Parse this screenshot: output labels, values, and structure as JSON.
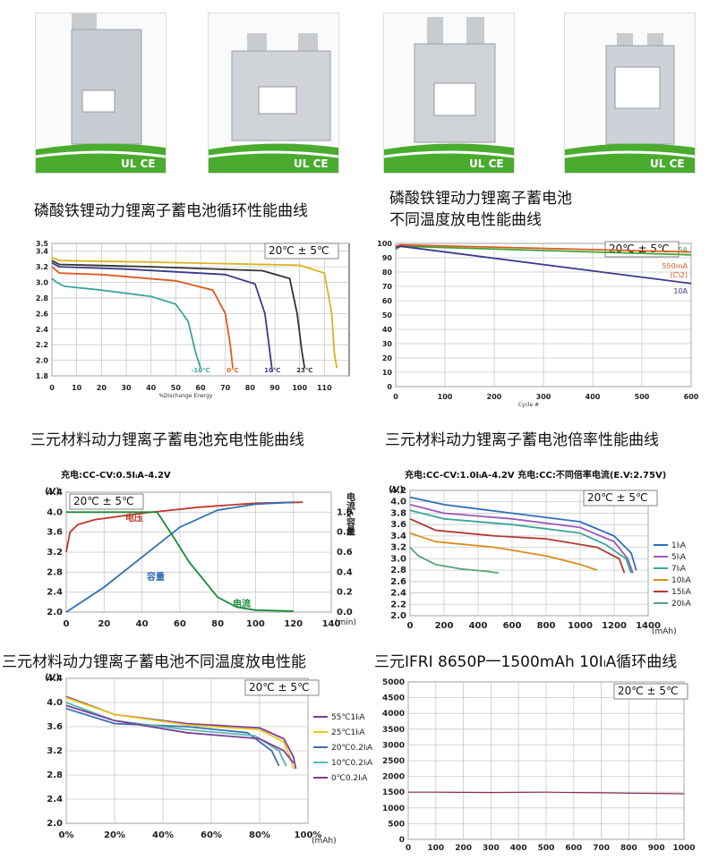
{
  "photos": [
    {
      "logo": "UL CE"
    },
    {
      "logo": "UL CE"
    },
    {
      "logo": "UL CE"
    },
    {
      "logo": "UL CE"
    }
  ],
  "captions": {
    "c1": "磷酸铁锂动力锂离子蓄电池循环性能曲线",
    "c2": "磷酸铁锂动力锂离子蓄电池\n不同温度放电性能曲线",
    "c3": "三元材料动力锂离子蓄电池充电性能曲线",
    "c4": "三元材料动力锂离子蓄电池倍率性能曲线",
    "c5": "三元材料动力锂离子蓄电池不同温度放电性能",
    "c6": "三元IFRI 8650P一1500mAh 10IₗA循环曲线"
  },
  "colors": {
    "green": "#3aa536",
    "red": "#c0392b",
    "blue": "#2f6fb5",
    "navy": "#3a3a8c",
    "orange": "#e08a1e",
    "yellow": "#d9b31c",
    "purple": "#7a3f9a",
    "teal": "#3aa69a"
  },
  "chart_data": [
    {
      "type": "line",
      "xlabel": "%Dischange Energy",
      "ylabel": "",
      "xlim": [
        0,
        120
      ],
      "ylim": [
        1.8,
        3.5
      ],
      "xticks": [
        "0",
        "10",
        "20",
        "30",
        "40",
        "50",
        "60",
        "70",
        "80",
        "90",
        "100",
        "110"
      ],
      "yticks": [
        "1.8",
        "2.0",
        "2.2",
        "2.4",
        "2.6",
        "2.8",
        "3.0",
        "3.2",
        "3.4",
        "3.5"
      ],
      "annotation": "20℃ ± 5℃",
      "series": [
        {
          "name": "-10℃",
          "color": "#3aa69a",
          "x": [
            0,
            2,
            5,
            20,
            40,
            50,
            55,
            58,
            60
          ],
          "y": [
            3.05,
            3.0,
            2.95,
            2.9,
            2.82,
            2.72,
            2.5,
            2.1,
            1.9
          ]
        },
        {
          "name": "0℃",
          "color": "#e05a1e",
          "x": [
            0,
            3,
            20,
            50,
            65,
            70,
            72,
            73
          ],
          "y": [
            3.2,
            3.12,
            3.1,
            3.02,
            2.9,
            2.6,
            2.2,
            1.9
          ]
        },
        {
          "name": "10℃",
          "color": "#3a3a8c",
          "x": [
            0,
            3,
            30,
            70,
            82,
            86,
            88,
            89
          ],
          "y": [
            3.25,
            3.2,
            3.17,
            3.1,
            2.98,
            2.6,
            2.1,
            1.85
          ]
        },
        {
          "name": "23℃",
          "color": "#333333",
          "x": [
            0,
            3,
            40,
            85,
            96,
            99,
            101,
            102
          ],
          "y": [
            3.28,
            3.23,
            3.2,
            3.15,
            3.05,
            2.6,
            2.1,
            1.9
          ]
        },
        {
          "name": "",
          "color": "#d9b31c",
          "x": [
            0,
            3,
            40,
            100,
            110,
            113,
            114,
            115
          ],
          "y": [
            3.32,
            3.28,
            3.26,
            3.22,
            3.12,
            2.6,
            2.1,
            1.9
          ]
        }
      ]
    },
    {
      "type": "line",
      "xlabel": "Cycle #",
      "ylabel": "",
      "xlim": [
        0,
        600
      ],
      "ylim": [
        0,
        100
      ],
      "xticks": [
        "0",
        "100",
        "200",
        "300",
        "400",
        "500",
        "600"
      ],
      "yticks": [
        "0",
        "10",
        "20",
        "30",
        "40",
        "50",
        "60",
        "70",
        "80",
        "90",
        "100"
      ],
      "annotation": "20℃ ± 5℃",
      "series": [
        {
          "name": "5A",
          "color": "#3aa536",
          "x": [
            0,
            10,
            600
          ],
          "y": [
            96,
            98,
            92
          ]
        },
        {
          "name": "550mA\n(C\\2)",
          "color": "#e05a1e",
          "x": [
            0,
            10,
            600
          ],
          "y": [
            98,
            99,
            94
          ]
        },
        {
          "name": "10A",
          "color": "#3a3a8c",
          "x": [
            0,
            10,
            600
          ],
          "y": [
            97,
            98,
            72
          ]
        }
      ]
    },
    {
      "type": "line",
      "title": "充电:CC-CV:0.5IₗA-4.2V",
      "ylabel": "(V)",
      "y2label": "电流&容量",
      "xlabel": "(min)",
      "xlim": [
        0,
        140
      ],
      "ylim": [
        2.0,
        4.4
      ],
      "y2lim": [
        0,
        1.2
      ],
      "xticks": [
        "0",
        "20",
        "40",
        "60",
        "80",
        "100",
        "120",
        "140"
      ],
      "yticks": [
        "2.0",
        "2.4",
        "2.8",
        "3.2",
        "3.6",
        "4.0",
        "4.4"
      ],
      "y2ticks": [
        "0.0",
        "0.2",
        "0.4",
        "0.6",
        "0.8",
        "1.0"
      ],
      "annotation": "20℃ ± 5℃",
      "series": [
        {
          "name": "电压",
          "color": "#c0392b",
          "x": [
            0,
            2,
            6,
            15,
            40,
            70,
            100,
            125
          ],
          "y": [
            3.2,
            3.6,
            3.75,
            3.85,
            3.98,
            4.1,
            4.18,
            4.2
          ]
        },
        {
          "name": "容量",
          "color": "#2f6fb5",
          "axis": "y2",
          "x": [
            0,
            20,
            40,
            60,
            80,
            100,
            120
          ],
          "y": [
            0,
            0.25,
            0.55,
            0.85,
            1.02,
            1.08,
            1.1
          ]
        },
        {
          "name": "电流",
          "color": "#1a8a3a",
          "axis": "y2",
          "x": [
            0,
            48,
            55,
            65,
            80,
            90,
            100,
            120
          ],
          "y": [
            1.0,
            1.0,
            0.8,
            0.5,
            0.15,
            0.05,
            0.02,
            0.01
          ]
        }
      ]
    },
    {
      "type": "line",
      "title": "充电:CC-CV:1.0IₗA-4.2V  充电:CC:不同倍率电流(E.V:2.75V)",
      "ylabel": "(V)",
      "xlabel": "(mAh)",
      "xlim": [
        0,
        1400
      ],
      "ylim": [
        2.0,
        4.2
      ],
      "xticks": [
        "0",
        "200",
        "400",
        "600",
        "800",
        "1000",
        "1200",
        "1400"
      ],
      "yticks": [
        "2.0",
        "2.2",
        "2.4",
        "2.6",
        "2.8",
        "3.0",
        "3.2",
        "3.4",
        "3.6",
        "3.8",
        "4.0",
        "4.2"
      ],
      "annotation": "20℃ ± 5℃",
      "series": [
        {
          "name": "1IₗA",
          "color": "#2f6fb5",
          "x": [
            0,
            200,
            600,
            1000,
            1200,
            1300,
            1330
          ],
          "y": [
            4.08,
            3.95,
            3.8,
            3.65,
            3.4,
            3.1,
            2.8
          ]
        },
        {
          "name": "5IₗA",
          "color": "#9b59b6",
          "x": [
            0,
            200,
            600,
            1000,
            1200,
            1280,
            1310
          ],
          "y": [
            3.95,
            3.8,
            3.7,
            3.55,
            3.3,
            3.0,
            2.75
          ]
        },
        {
          "name": "7IₗA",
          "color": "#3aa69a",
          "x": [
            0,
            200,
            600,
            1000,
            1150,
            1270,
            1300
          ],
          "y": [
            3.85,
            3.7,
            3.6,
            3.45,
            3.25,
            3.0,
            2.75
          ]
        },
        {
          "name": "10IₗA",
          "color": "#e08a1e",
          "x": [
            0,
            150,
            500,
            800,
            1000,
            1100
          ],
          "y": [
            3.45,
            3.3,
            3.2,
            3.05,
            2.9,
            2.8
          ]
        },
        {
          "name": "15IₗA",
          "color": "#b03a2e",
          "x": [
            0,
            150,
            500,
            800,
            1100,
            1230,
            1260
          ],
          "y": [
            3.7,
            3.5,
            3.4,
            3.35,
            3.2,
            3.0,
            2.75
          ]
        },
        {
          "name": "20IₗA",
          "color": "#5aa57a",
          "x": [
            0,
            50,
            150,
            300,
            450,
            520
          ],
          "y": [
            3.2,
            3.05,
            2.9,
            2.82,
            2.78,
            2.75
          ]
        }
      ]
    },
    {
      "type": "line",
      "ylabel": "(V)",
      "xlabel": "(mAh)",
      "xlim": [
        0,
        100
      ],
      "ylim": [
        2.0,
        4.4
      ],
      "xticks": [
        "0%",
        "20%",
        "40%",
        "60%",
        "80%",
        "100%"
      ],
      "yticks": [
        "2.0",
        "2.4",
        "2.8",
        "3.2",
        "3.6",
        "4.0",
        "4.4"
      ],
      "annotation": "20℃ ± 5℃",
      "series": [
        {
          "name": "55℃1IₗA",
          "color": "#7a3f9a",
          "x": [
            0,
            20,
            50,
            80,
            90,
            94,
            95
          ],
          "y": [
            4.1,
            3.8,
            3.65,
            3.58,
            3.4,
            3.1,
            2.9
          ]
        },
        {
          "name": "25℃1IₗA",
          "color": "#e6c81e",
          "x": [
            0,
            20,
            50,
            80,
            90,
            93,
            94
          ],
          "y": [
            4.08,
            3.8,
            3.63,
            3.55,
            3.35,
            3.05,
            2.9
          ]
        },
        {
          "name": "20℃0.2IₗA",
          "color": "#3a6fb5",
          "x": [
            0,
            20,
            50,
            75,
            85,
            88
          ],
          "y": [
            3.9,
            3.65,
            3.6,
            3.5,
            3.2,
            2.95
          ]
        },
        {
          "name": "10℃0.2IₗA",
          "color": "#5ab5b0",
          "x": [
            0,
            20,
            50,
            78,
            88,
            91
          ],
          "y": [
            4.0,
            3.7,
            3.55,
            3.45,
            3.2,
            2.95
          ]
        },
        {
          "name": "0℃0.2IₗA",
          "color": "#7a3f9a",
          "x": [
            0,
            20,
            50,
            80,
            90,
            94
          ],
          "y": [
            3.95,
            3.7,
            3.5,
            3.4,
            3.2,
            3.0
          ]
        }
      ]
    },
    {
      "type": "line",
      "xlim": [
        0,
        1000
      ],
      "ylim": [
        0,
        5000
      ],
      "xticks": [
        "0",
        "100",
        "200",
        "300",
        "400",
        "500",
        "600",
        "700",
        "800",
        "900",
        "1000"
      ],
      "yticks": [
        "0",
        "500",
        "1000",
        "1500",
        "2000",
        "2500",
        "3000",
        "3500",
        "4000",
        "4500",
        "5000"
      ],
      "annotation": "20℃ ± 5℃",
      "series": [
        {
          "name": "",
          "color": "#8a2a5a",
          "x": [
            0,
            100,
            200,
            300,
            400,
            500,
            600,
            700,
            800,
            900,
            1000
          ],
          "y": [
            1500,
            1500,
            1495,
            1490,
            1495,
            1500,
            1490,
            1480,
            1470,
            1460,
            1450
          ]
        }
      ]
    }
  ]
}
